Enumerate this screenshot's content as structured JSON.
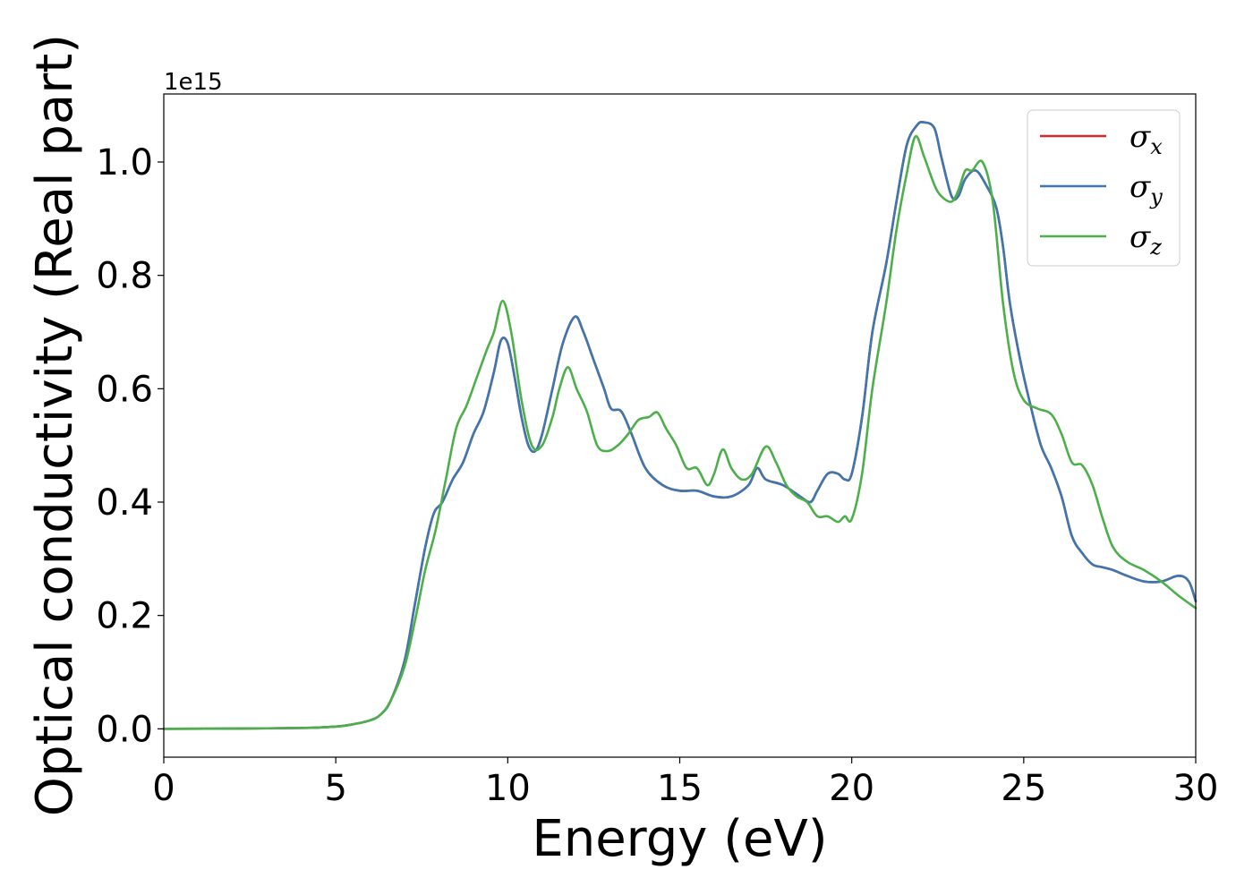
{
  "chart_data": {
    "type": "line",
    "xlabel": "Energy (eV)",
    "ylabel": "Optical conductivity (Real part)",
    "y_offset_label": "1e15",
    "xlim": [
      0,
      30
    ],
    "ylim": [
      -0.05,
      1.12
    ],
    "xticks": [
      0,
      5,
      10,
      15,
      20,
      25,
      30
    ],
    "yticks": [
      0.0,
      0.2,
      0.4,
      0.6,
      0.8,
      1.0
    ],
    "ytick_labels": [
      "0.0",
      "0.2",
      "0.4",
      "0.6",
      "0.8",
      "1.0"
    ],
    "grid": false,
    "legend_position": "top-right",
    "series": [
      {
        "name": "σx",
        "symbol": "σ",
        "subscript": "x",
        "color": "#d62728",
        "x": [
          0,
          2,
          4,
          5,
          5.5,
          6,
          6.3,
          6.6,
          7,
          7.3,
          7.6,
          7.85,
          8.1,
          8.4,
          8.7,
          9,
          9.3,
          9.6,
          9.8,
          10,
          10.2,
          10.4,
          10.6,
          10.8,
          11,
          11.3,
          11.6,
          11.95,
          12.2,
          12.5,
          12.8,
          13,
          13.3,
          13.6,
          14,
          14.5,
          15,
          15.5,
          16,
          16.5,
          17,
          17.25,
          17.5,
          18,
          18.5,
          18.8,
          19,
          19.3,
          19.6,
          19.8,
          20,
          20.3,
          20.6,
          21,
          21.3,
          21.6,
          21.9,
          22.1,
          22.4,
          22.6,
          22.9,
          23.1,
          23.3,
          23.6,
          23.9,
          24.2,
          24.4,
          24.6,
          24.9,
          25.2,
          25.5,
          25.8,
          26.1,
          26.4,
          26.7,
          27,
          27.3,
          27.6,
          28,
          28.5,
          29,
          29.5,
          29.8,
          30
        ],
        "y": [
          0,
          0.0005,
          0.0015,
          0.004,
          0.008,
          0.015,
          0.025,
          0.05,
          0.12,
          0.22,
          0.32,
          0.38,
          0.4,
          0.44,
          0.47,
          0.52,
          0.56,
          0.63,
          0.685,
          0.68,
          0.62,
          0.55,
          0.5,
          0.49,
          0.52,
          0.6,
          0.68,
          0.727,
          0.7,
          0.65,
          0.6,
          0.565,
          0.56,
          0.52,
          0.46,
          0.43,
          0.42,
          0.42,
          0.41,
          0.41,
          0.43,
          0.46,
          0.44,
          0.43,
          0.41,
          0.4,
          0.42,
          0.45,
          0.45,
          0.44,
          0.45,
          0.55,
          0.7,
          0.82,
          0.93,
          1.03,
          1.065,
          1.07,
          1.06,
          1.01,
          0.94,
          0.94,
          0.97,
          0.985,
          0.96,
          0.92,
          0.85,
          0.75,
          0.65,
          0.57,
          0.5,
          0.46,
          0.41,
          0.34,
          0.31,
          0.29,
          0.285,
          0.28,
          0.27,
          0.26,
          0.26,
          0.27,
          0.26,
          0.225
        ]
      },
      {
        "name": "σy",
        "symbol": "σ",
        "subscript": "y",
        "color": "#3d77b0",
        "x": [
          0,
          2,
          4,
          5,
          5.5,
          6,
          6.3,
          6.6,
          7,
          7.3,
          7.6,
          7.85,
          8.1,
          8.4,
          8.7,
          9,
          9.3,
          9.6,
          9.8,
          10,
          10.2,
          10.4,
          10.6,
          10.8,
          11,
          11.3,
          11.6,
          11.95,
          12.2,
          12.5,
          12.8,
          13,
          13.3,
          13.6,
          14,
          14.5,
          15,
          15.5,
          16,
          16.5,
          17,
          17.25,
          17.5,
          18,
          18.5,
          18.8,
          19,
          19.3,
          19.6,
          19.8,
          20,
          20.3,
          20.6,
          21,
          21.3,
          21.6,
          21.9,
          22.1,
          22.4,
          22.6,
          22.9,
          23.1,
          23.3,
          23.6,
          23.9,
          24.2,
          24.4,
          24.6,
          24.9,
          25.2,
          25.5,
          25.8,
          26.1,
          26.4,
          26.7,
          27,
          27.3,
          27.6,
          28,
          28.5,
          29,
          29.5,
          29.8,
          30
        ],
        "y": [
          0,
          0.0005,
          0.0015,
          0.004,
          0.008,
          0.015,
          0.025,
          0.05,
          0.12,
          0.22,
          0.32,
          0.38,
          0.4,
          0.44,
          0.47,
          0.52,
          0.56,
          0.63,
          0.685,
          0.68,
          0.62,
          0.55,
          0.5,
          0.49,
          0.52,
          0.6,
          0.68,
          0.727,
          0.7,
          0.65,
          0.6,
          0.565,
          0.56,
          0.52,
          0.46,
          0.43,
          0.42,
          0.42,
          0.41,
          0.41,
          0.43,
          0.46,
          0.44,
          0.43,
          0.41,
          0.4,
          0.42,
          0.45,
          0.45,
          0.44,
          0.45,
          0.55,
          0.7,
          0.82,
          0.93,
          1.03,
          1.065,
          1.07,
          1.06,
          1.01,
          0.94,
          0.94,
          0.97,
          0.985,
          0.96,
          0.92,
          0.85,
          0.75,
          0.65,
          0.57,
          0.5,
          0.46,
          0.41,
          0.34,
          0.31,
          0.29,
          0.285,
          0.28,
          0.27,
          0.26,
          0.26,
          0.27,
          0.26,
          0.225
        ]
      },
      {
        "name": "σz",
        "symbol": "σ",
        "subscript": "z",
        "color": "#4daf4a",
        "x": [
          0,
          2,
          4,
          5,
          5.5,
          6,
          6.3,
          6.6,
          7,
          7.3,
          7.6,
          7.9,
          8.2,
          8.5,
          8.8,
          9.1,
          9.4,
          9.6,
          9.85,
          10.1,
          10.4,
          10.7,
          11,
          11.3,
          11.5,
          11.75,
          12,
          12.3,
          12.6,
          12.9,
          13.2,
          13.5,
          13.8,
          14.1,
          14.35,
          14.6,
          14.9,
          15.2,
          15.5,
          15.8,
          16,
          16.25,
          16.5,
          16.8,
          17.1,
          17.5,
          17.8,
          18.1,
          18.4,
          18.7,
          19,
          19.3,
          19.6,
          19.8,
          20,
          20.3,
          20.6,
          21,
          21.3,
          21.6,
          21.85,
          22.1,
          22.4,
          22.6,
          22.9,
          23.1,
          23.3,
          23.5,
          23.8,
          24.1,
          24.4,
          24.7,
          25,
          25.4,
          25.8,
          26.1,
          26.4,
          26.7,
          27,
          27.3,
          27.6,
          28,
          28.5,
          29,
          29.5,
          30
        ],
        "y": [
          0,
          0.0005,
          0.0015,
          0.004,
          0.008,
          0.015,
          0.025,
          0.05,
          0.11,
          0.19,
          0.28,
          0.35,
          0.44,
          0.53,
          0.57,
          0.62,
          0.67,
          0.7,
          0.755,
          0.7,
          0.58,
          0.5,
          0.5,
          0.55,
          0.6,
          0.638,
          0.6,
          0.56,
          0.5,
          0.49,
          0.5,
          0.52,
          0.545,
          0.55,
          0.558,
          0.53,
          0.5,
          0.46,
          0.46,
          0.43,
          0.45,
          0.493,
          0.46,
          0.44,
          0.45,
          0.498,
          0.47,
          0.43,
          0.41,
          0.4,
          0.375,
          0.375,
          0.365,
          0.375,
          0.37,
          0.45,
          0.6,
          0.75,
          0.88,
          0.98,
          1.045,
          1.01,
          0.96,
          0.94,
          0.93,
          0.95,
          0.985,
          0.985,
          1.0,
          0.93,
          0.75,
          0.63,
          0.58,
          0.565,
          0.555,
          0.52,
          0.47,
          0.465,
          0.43,
          0.37,
          0.32,
          0.295,
          0.28,
          0.26,
          0.235,
          0.213
        ]
      }
    ]
  }
}
